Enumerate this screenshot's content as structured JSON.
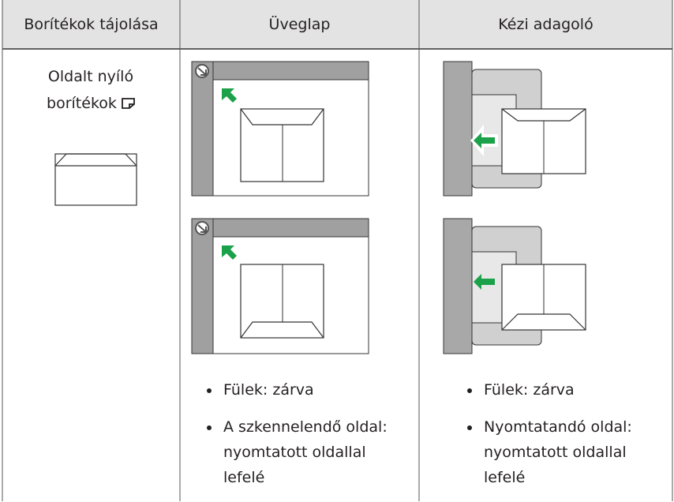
{
  "table": {
    "header": [
      "Borítékok tájolása",
      "Üveglap",
      "Kézi adagoló"
    ],
    "rows": [
      {
        "orientation": "Oldalt nyíló borítékok",
        "glass": [
          "Fülek: zárva",
          "A szkennelendő oldal: nyomtatott oldallal lefelé"
        ],
        "bypass": [
          "Fülek: zárva",
          "Nyomtatandó oldal: nyomtatott oldallal lefelé"
        ]
      }
    ]
  }
}
